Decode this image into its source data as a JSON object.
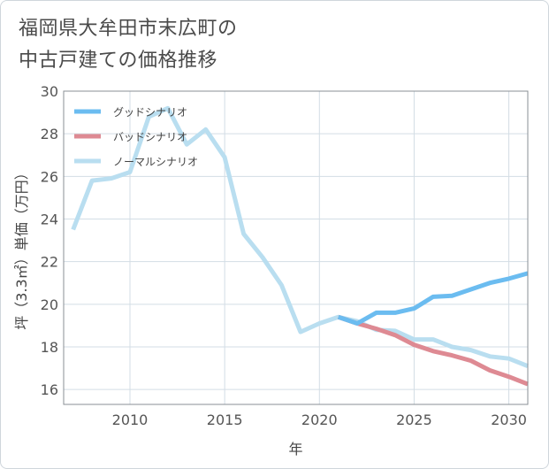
{
  "title_lines": [
    "福岡県大牟田市末広町の",
    "中古戸建ての価格推移"
  ],
  "chart_data": {
    "type": "line",
    "xlabel": "年",
    "ylabel": "坪（3.3㎡）単価（万円）",
    "xlim": [
      2006.5,
      2031
    ],
    "ylim": [
      15.3,
      30
    ],
    "x_ticks": [
      2010,
      2015,
      2020,
      2025,
      2030
    ],
    "y_ticks": [
      16,
      18,
      20,
      22,
      24,
      26,
      28,
      30
    ],
    "grid": true,
    "legend_position": "top-left",
    "series": [
      {
        "name": "グッドシナリオ",
        "color": "#6bbcf0",
        "x": [
          2021,
          2022,
          2023,
          2024,
          2025,
          2026,
          2027,
          2028,
          2029,
          2030,
          2031
        ],
        "values": [
          19.4,
          19.1,
          19.6,
          19.6,
          19.8,
          20.35,
          20.4,
          20.7,
          21.0,
          21.2,
          21.45
        ]
      },
      {
        "name": "バッドシナリオ",
        "color": "#de8a93",
        "x": [
          2021,
          2022,
          2023,
          2024,
          2025,
          2026,
          2027,
          2028,
          2029,
          2030,
          2031
        ],
        "values": [
          19.4,
          19.1,
          18.85,
          18.55,
          18.1,
          17.8,
          17.6,
          17.35,
          16.9,
          16.6,
          16.25
        ]
      },
      {
        "name": "ノーマルシナリオ",
        "color": "#b9def0",
        "x": [
          2007,
          2008,
          2009,
          2010,
          2011,
          2012,
          2013,
          2014,
          2015,
          2016,
          2017,
          2018,
          2019,
          2020,
          2021,
          2022,
          2023,
          2024,
          2025,
          2026,
          2027,
          2028,
          2029,
          2030,
          2031
        ],
        "values": [
          23.5,
          25.8,
          25.9,
          26.2,
          28.8,
          29.2,
          27.5,
          28.2,
          26.9,
          23.3,
          22.2,
          20.9,
          18.7,
          19.1,
          19.4,
          19.2,
          18.8,
          18.75,
          18.35,
          18.35,
          18.0,
          17.85,
          17.55,
          17.45,
          17.1
        ]
      }
    ]
  }
}
